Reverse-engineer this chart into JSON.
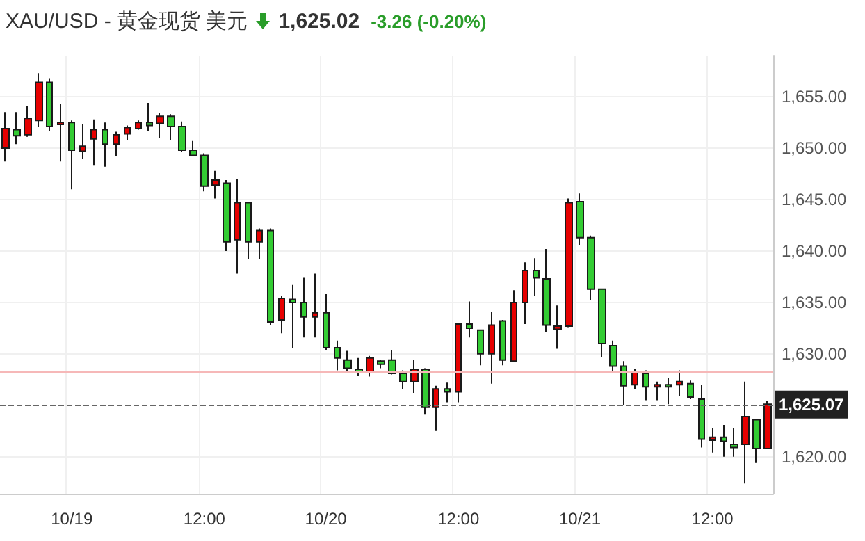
{
  "chart_data": {
    "type": "candlestick",
    "title": "XAU/USD - 黄金现货 美元",
    "annotations": [
      "1,625.02",
      "-3.26 (-0.20%)"
    ],
    "categories": [
      null,
      null,
      null,
      null,
      null,
      null,
      "10/19",
      null,
      null,
      null,
      null,
      null,
      null,
      null,
      null,
      null,
      null,
      null,
      "12:00",
      null,
      null,
      null,
      null,
      null,
      null,
      null,
      null,
      null,
      null,
      "10/20",
      null,
      null,
      null,
      null,
      null,
      null,
      null,
      null,
      null,
      null,
      null,
      "12:00",
      null,
      null,
      null,
      null,
      null,
      null,
      null,
      null,
      null,
      null,
      "10/21",
      null,
      null,
      null,
      null,
      null,
      null,
      null,
      null,
      null,
      null,
      null,
      "12:00",
      null,
      null,
      null,
      null,
      null
    ],
    "ohlc": [
      [
        1650.0,
        1653.5,
        1648.7,
        1651.9
      ],
      [
        1651.8,
        1653.5,
        1650.4,
        1651.2
      ],
      [
        1651.3,
        1654.1,
        1651.1,
        1652.9
      ],
      [
        1652.7,
        1657.3,
        1652.1,
        1656.4
      ],
      [
        1656.4,
        1656.8,
        1651.7,
        1652.1
      ],
      [
        1652.3,
        1654.3,
        1648.7,
        1652.5
      ],
      [
        1652.5,
        1652.7,
        1646.0,
        1649.8
      ],
      [
        1649.7,
        1652.3,
        1649.0,
        1650.2
      ],
      [
        1650.9,
        1652.8,
        1648.3,
        1651.8
      ],
      [
        1651.8,
        1652.5,
        1648.2,
        1650.4
      ],
      [
        1650.4,
        1651.6,
        1649.2,
        1651.3
      ],
      [
        1651.4,
        1652.2,
        1650.8,
        1652.0
      ],
      [
        1651.9,
        1652.7,
        1651.8,
        1652.5
      ],
      [
        1652.5,
        1654.4,
        1651.7,
        1652.2
      ],
      [
        1652.4,
        1653.4,
        1651.0,
        1653.1
      ],
      [
        1653.1,
        1653.3,
        1650.8,
        1652.1
      ],
      [
        1652.1,
        1652.6,
        1649.6,
        1649.8
      ],
      [
        1649.8,
        1650.7,
        1649.2,
        1649.3
      ],
      [
        1649.3,
        1649.5,
        1645.8,
        1646.3
      ],
      [
        1646.4,
        1647.8,
        1645.1,
        1646.9
      ],
      [
        1646.6,
        1646.9,
        1640.0,
        1640.9
      ],
      [
        1641.1,
        1647.0,
        1637.8,
        1644.7
      ],
      [
        1644.7,
        1644.8,
        1639.2,
        1640.9
      ],
      [
        1640.9,
        1642.2,
        1639.2,
        1642.0
      ],
      [
        1642.0,
        1642.2,
        1632.8,
        1633.1
      ],
      [
        1633.3,
        1635.6,
        1632.0,
        1635.4
      ],
      [
        1635.3,
        1636.7,
        1630.6,
        1635.0
      ],
      [
        1635.0,
        1637.4,
        1631.6,
        1633.6
      ],
      [
        1633.6,
        1637.8,
        1631.6,
        1634.0
      ],
      [
        1634.0,
        1635.8,
        1630.4,
        1630.6
      ],
      [
        1630.6,
        1631.3,
        1628.4,
        1629.6
      ],
      [
        1629.4,
        1630.3,
        1628.1,
        1628.6
      ],
      [
        1628.5,
        1629.6,
        1627.9,
        1628.2
      ],
      [
        1628.3,
        1629.8,
        1627.8,
        1629.6
      ],
      [
        1629.3,
        1629.4,
        1628.6,
        1629.0
      ],
      [
        1629.4,
        1630.4,
        1628.0,
        1628.1
      ],
      [
        1628.1,
        1628.4,
        1626.6,
        1627.3
      ],
      [
        1627.3,
        1629.4,
        1626.2,
        1628.5
      ],
      [
        1628.5,
        1628.6,
        1624.1,
        1624.8
      ],
      [
        1624.8,
        1626.9,
        1622.5,
        1626.6
      ],
      [
        1626.6,
        1627.2,
        1625.3,
        1626.3
      ],
      [
        1626.3,
        1632.9,
        1625.3,
        1632.9
      ],
      [
        1632.9,
        1635.1,
        1631.6,
        1632.5
      ],
      [
        1632.3,
        1632.3,
        1628.9,
        1630.0
      ],
      [
        1630.0,
        1634.1,
        1627.1,
        1632.8
      ],
      [
        1633.2,
        1633.3,
        1628.9,
        1629.4
      ],
      [
        1629.3,
        1636.2,
        1629.2,
        1635.0
      ],
      [
        1635.0,
        1638.9,
        1632.9,
        1638.1
      ],
      [
        1638.1,
        1639.3,
        1635.6,
        1637.4
      ],
      [
        1637.3,
        1640.2,
        1632.1,
        1632.8
      ],
      [
        1632.4,
        1634.7,
        1630.5,
        1632.7
      ],
      [
        1632.7,
        1645.1,
        1632.6,
        1644.7
      ],
      [
        1644.8,
        1645.6,
        1640.6,
        1641.3
      ],
      [
        1641.3,
        1641.5,
        1635.2,
        1636.3
      ],
      [
        1636.3,
        1636.3,
        1629.7,
        1631.0
      ],
      [
        1630.8,
        1631.3,
        1628.2,
        1628.8
      ],
      [
        1628.8,
        1629.3,
        1625.0,
        1626.9
      ],
      [
        1627.0,
        1628.5,
        1626.6,
        1628.2
      ],
      [
        1628.1,
        1628.4,
        1625.5,
        1626.8
      ],
      [
        1626.8,
        1627.3,
        1625.5,
        1627.0
      ],
      [
        1627.0,
        1627.7,
        1625.1,
        1626.8
      ],
      [
        1627.0,
        1628.4,
        1625.9,
        1627.3
      ],
      [
        1627.1,
        1627.4,
        1625.6,
        1625.8
      ],
      [
        1625.6,
        1627.0,
        1620.9,
        1621.7
      ],
      [
        1621.6,
        1622.8,
        1620.4,
        1621.9
      ],
      [
        1621.9,
        1623.1,
        1620.0,
        1621.5
      ],
      [
        1621.2,
        1622.8,
        1620.0,
        1620.9
      ],
      [
        1621.2,
        1627.3,
        1617.4,
        1623.9
      ],
      [
        1623.6,
        1623.7,
        1619.4,
        1620.8
      ],
      [
        1620.8,
        1625.4,
        1620.8,
        1625.1
      ]
    ],
    "colors": [
      "#e60000",
      "#33cc33",
      "#e60000",
      "#e60000",
      "#33cc33",
      "#e60000",
      "#33cc33",
      "#e60000",
      "#e60000",
      "#33cc33",
      "#e60000",
      "#e60000",
      "#e60000",
      "#33cc33",
      "#e60000",
      "#33cc33",
      "#33cc33",
      "#33cc33",
      "#33cc33",
      "#e60000",
      "#33cc33",
      "#e60000",
      "#33cc33",
      "#e60000",
      "#33cc33",
      "#e60000",
      "#33cc33",
      "#33cc33",
      "#e60000",
      "#33cc33",
      "#33cc33",
      "#33cc33",
      "#33cc33",
      "#e60000",
      "#33cc33",
      "#33cc33",
      "#33cc33",
      "#e60000",
      "#33cc33",
      "#e60000",
      "#33cc33",
      "#e60000",
      "#33cc33",
      "#33cc33",
      "#e60000",
      "#33cc33",
      "#e60000",
      "#e60000",
      "#33cc33",
      "#33cc33",
      "#e60000",
      "#e60000",
      "#33cc33",
      "#33cc33",
      "#33cc33",
      "#33cc33",
      "#33cc33",
      "#e60000",
      "#33cc33",
      "#e60000",
      "#33cc33",
      "#e60000",
      "#33cc33",
      "#33cc33",
      "#e60000",
      "#33cc33",
      "#33cc33",
      "#e60000",
      "#33cc33",
      "#e60000"
    ],
    "ylim": [
      1616.4,
      1659
    ],
    "yticks": [
      {
        "value": 1620,
        "label": "1,620.00"
      },
      {
        "value": 1630,
        "label": "1,630.00"
      },
      {
        "value": 1635,
        "label": "1,635.00"
      },
      {
        "value": 1640,
        "label": "1,640.00"
      },
      {
        "value": 1645,
        "label": "1,645.00"
      },
      {
        "value": 1650,
        "label": "1,650.00"
      },
      {
        "value": 1655,
        "label": "1,655.00"
      }
    ],
    "ref_lines": [
      {
        "axis": "y",
        "value": 1628.28,
        "color": "#f6b8b8",
        "line_style": "solid"
      },
      {
        "axis": "y",
        "value": 1625.07,
        "label": "1,625.07",
        "color": "#666666",
        "line_style": "dashed"
      }
    ],
    "grid": true
  }
}
